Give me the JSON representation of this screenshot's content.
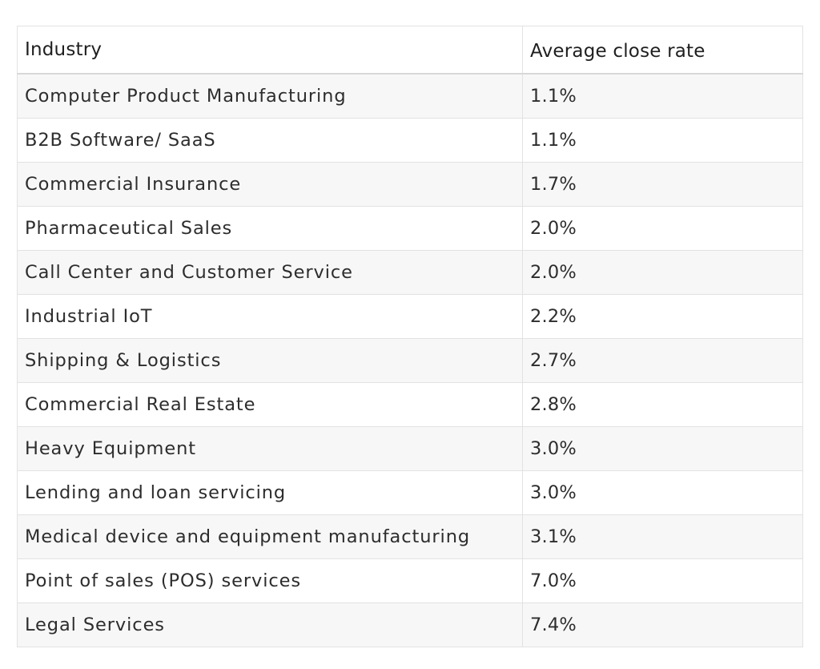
{
  "table": {
    "headers": {
      "industry": "Industry",
      "rate": "Average close rate"
    },
    "rows": [
      {
        "industry": "Computer Product Manufacturing",
        "rate": "1.1%"
      },
      {
        "industry": "B2B Software/ SaaS",
        "rate": "1.1%"
      },
      {
        "industry": "Commercial Insurance",
        "rate": "1.7%"
      },
      {
        "industry": "Pharmaceutical Sales",
        "rate": "2.0%"
      },
      {
        "industry": "Call Center and Customer Service",
        "rate": "2.0%"
      },
      {
        "industry": "Industrial IoT",
        "rate": "2.2%"
      },
      {
        "industry": "Shipping & Logistics",
        "rate": "2.7%"
      },
      {
        "industry": "Commercial Real Estate",
        "rate": "2.8%"
      },
      {
        "industry": "Heavy Equipment",
        "rate": "3.0%"
      },
      {
        "industry": "Lending and loan servicing",
        "rate": "3.0%"
      },
      {
        "industry": "Medical device and equipment manufacturing",
        "rate": "3.1%"
      },
      {
        "industry": "Point of sales (POS) services",
        "rate": "7.0%"
      },
      {
        "industry": "Legal Services",
        "rate": "7.4%"
      }
    ]
  }
}
